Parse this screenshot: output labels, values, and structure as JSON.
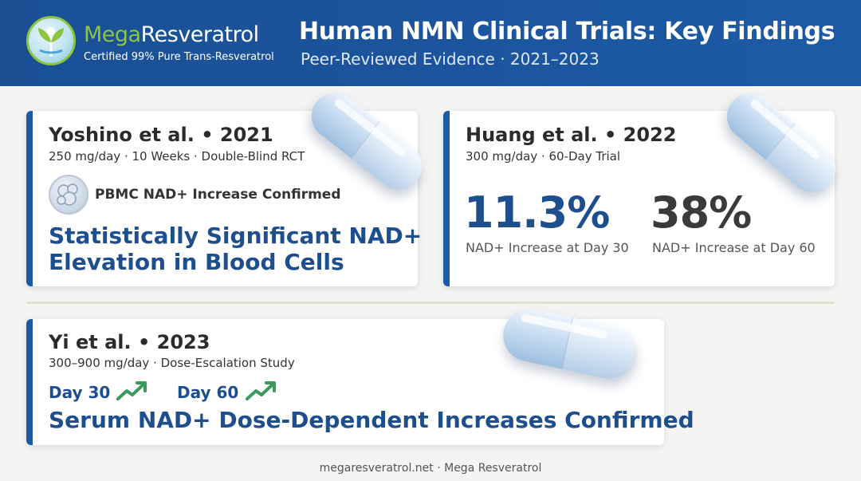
{
  "header": {
    "brand_prefix": "Mega",
    "brand_suffix": "Resveratrol",
    "brand_tagline": "Certified 99% Pure Trans-Resveratrol",
    "title": "Human NMN Clinical Trials: Key Findings",
    "subtitle": "Peer-Reviewed Evidence · 2021–2023"
  },
  "cards": {
    "yoshino": {
      "title": "Yoshino et al. • 2021",
      "meta": "250 mg/day · 10 Weeks · Double-Blind RCT",
      "icon_label": "PBMC NAD+ Increase Confirmed",
      "headline_line1": "Statistically Significant NAD+",
      "headline_line2": "Elevation in Blood Cells"
    },
    "huang": {
      "title": "Huang et al. • 2022",
      "meta": "300 mg/day · 60-Day Trial",
      "stat1_value": "11.3%",
      "stat1_label": "NAD+ Increase at Day 30",
      "stat2_value": "38%",
      "stat2_label": "NAD+ Increase at Day 60"
    },
    "yi": {
      "title": "Yi et al. • 2023",
      "meta": "300–900 mg/day · Dose-Escalation Study",
      "day1": "Day 30",
      "day2": "Day 60",
      "headline": "Serum NAD+ Dose-Dependent Increases Confirmed"
    }
  },
  "footer": "megaresveratrol.net · Mega Resveratrol",
  "colors": {
    "header_blue": "#1d5aa6",
    "accent_green": "#8cc63f",
    "headline_blue": "#1d4f8f",
    "arrow_green": "#3a9a5b"
  }
}
